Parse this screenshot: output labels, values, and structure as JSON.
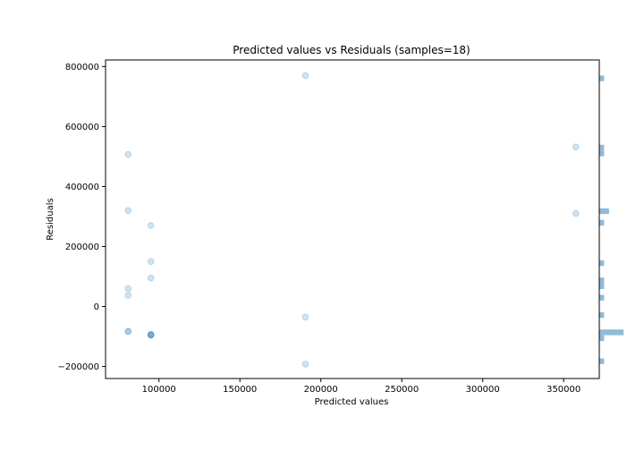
{
  "chart_data": {
    "type": "scatter",
    "title": "Predicted values vs Residuals (samples=18)",
    "xlabel": "Predicted values",
    "ylabel": "Residuals",
    "xlim": [
      67000,
      372000
    ],
    "ylim": [
      -240000,
      822000
    ],
    "xticks": [
      {
        "value": 100000,
        "label": "100000"
      },
      {
        "value": 150000,
        "label": "150000"
      },
      {
        "value": 200000,
        "label": "200000"
      },
      {
        "value": 250000,
        "label": "250000"
      },
      {
        "value": 300000,
        "label": "300000"
      },
      {
        "value": 350000,
        "label": "350000"
      }
    ],
    "yticks": [
      {
        "value": -200000,
        "label": "−200000"
      },
      {
        "value": 0,
        "label": "0"
      },
      {
        "value": 200000,
        "label": "200000"
      },
      {
        "value": 400000,
        "label": "400000"
      },
      {
        "value": 600000,
        "label": "600000"
      },
      {
        "value": 800000,
        "label": "800000"
      }
    ],
    "point_color": "#1f77b4",
    "point_alpha": 0.2,
    "hist_color": "#1f77b4",
    "hist_alpha": 0.5,
    "grid": false,
    "points": [
      {
        "x": 190500,
        "y": 770000
      },
      {
        "x": 357500,
        "y": 532000
      },
      {
        "x": 81000,
        "y": 507000
      },
      {
        "x": 81000,
        "y": 320000
      },
      {
        "x": 357500,
        "y": 310000
      },
      {
        "x": 95000,
        "y": 270000
      },
      {
        "x": 95000,
        "y": 150000
      },
      {
        "x": 95000,
        "y": 95000
      },
      {
        "x": 81000,
        "y": 60000
      },
      {
        "x": 81000,
        "y": 37000
      },
      {
        "x": 190500,
        "y": -35000
      },
      {
        "x": 81000,
        "y": -82000
      },
      {
        "x": 81000,
        "y": -84000
      },
      {
        "x": 95000,
        "y": -92000
      },
      {
        "x": 95000,
        "y": -94000
      },
      {
        "x": 95000,
        "y": -95000
      },
      {
        "x": 95000,
        "y": -96000
      },
      {
        "x": 190500,
        "y": -192000
      }
    ]
  }
}
